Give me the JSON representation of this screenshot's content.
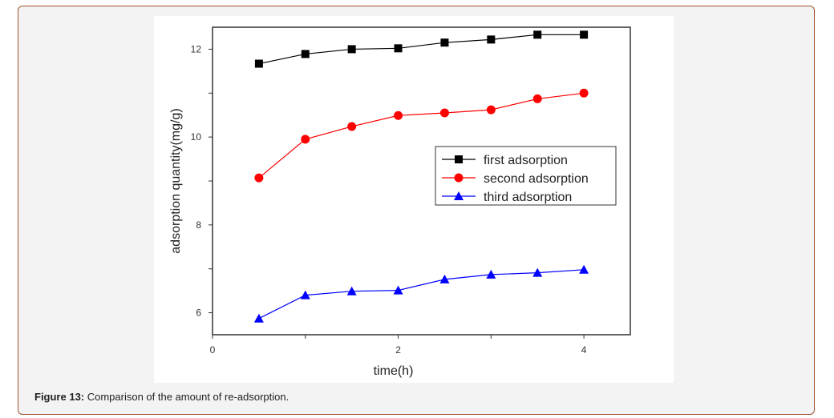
{
  "caption": {
    "label": "Figure 13:",
    "text": " Comparison of the amount of re-adsorption."
  },
  "chart_data": {
    "type": "line",
    "title": "",
    "xlabel": "time(h)",
    "ylabel": "adsorption quantity(mg/g)",
    "xlim": [
      0,
      4.5
    ],
    "ylim": [
      5.5,
      12.5
    ],
    "xticks": [
      0,
      2,
      4
    ],
    "yticks": [
      6,
      8,
      10,
      12
    ],
    "grid": false,
    "legend_position": "center-right",
    "x": [
      0.5,
      1.0,
      1.5,
      2.0,
      2.5,
      3.0,
      3.5,
      4.0
    ],
    "series": [
      {
        "name": "first adsorption",
        "color": "#000000",
        "marker": "square",
        "values": [
          11.67,
          11.89,
          12.0,
          12.02,
          12.15,
          12.22,
          12.33,
          12.33
        ]
      },
      {
        "name": "second adsorption",
        "color": "#ff0000",
        "marker": "circle",
        "values": [
          9.07,
          9.95,
          10.24,
          10.49,
          10.55,
          10.62,
          10.87,
          11.0
        ]
      },
      {
        "name": "third adsorption",
        "color": "#0000ff",
        "marker": "triangle",
        "values": [
          5.87,
          6.4,
          6.49,
          6.51,
          6.76,
          6.87,
          6.91,
          6.98
        ]
      }
    ]
  }
}
